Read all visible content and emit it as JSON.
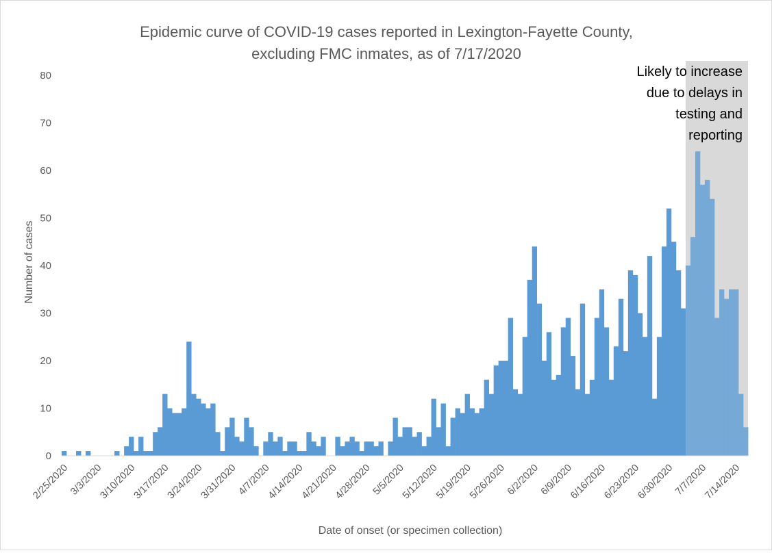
{
  "chart_data": {
    "type": "bar",
    "title": [
      "Epidemic curve of COVID-19 cases reported in Lexington-Fayette County,",
      "excluding FMC inmates, as of 7/17/2020"
    ],
    "xlabel": "Date of onset (or specimen collection)",
    "ylabel": "Number of cases",
    "ylim": [
      0,
      80
    ],
    "yticks": [
      0,
      10,
      20,
      30,
      40,
      50,
      60,
      70,
      80
    ],
    "x_start": "2/25/2020",
    "x_end": "7/17/2020",
    "tick_labels": [
      "2/25/2020",
      "3/3/2020",
      "3/10/2020",
      "3/17/2020",
      "3/24/2020",
      "3/31/2020",
      "4/7/2020",
      "4/14/2020",
      "4/21/2020",
      "4/28/2020",
      "5/5/2020",
      "5/12/2020",
      "5/19/2020",
      "5/26/2020",
      "6/2/2020",
      "6/9/2020",
      "6/16/2020",
      "6/23/2020",
      "6/30/2020",
      "7/7/2020",
      "7/14/2020"
    ],
    "values": [
      1,
      0,
      0,
      1,
      0,
      1,
      0,
      0,
      0,
      0,
      0,
      1,
      0,
      2,
      4,
      1,
      4,
      1,
      1,
      5,
      6,
      13,
      10,
      9,
      9,
      10,
      24,
      13,
      12,
      11,
      10,
      11,
      5,
      1,
      6,
      8,
      4,
      3,
      8,
      6,
      2,
      0,
      3,
      5,
      3,
      4,
      1,
      3,
      3,
      1,
      1,
      5,
      3,
      2,
      4,
      0,
      0,
      4,
      2,
      3,
      4,
      3,
      1,
      3,
      3,
      2,
      3,
      0,
      3,
      8,
      4,
      6,
      6,
      4,
      5,
      2,
      4,
      12,
      6,
      11,
      2,
      8,
      10,
      9,
      13,
      10,
      9,
      10,
      16,
      13,
      19,
      20,
      20,
      29,
      14,
      13,
      25,
      37,
      44,
      32,
      20,
      26,
      16,
      17,
      27,
      29,
      21,
      14,
      32,
      13,
      16,
      29,
      35,
      27,
      16,
      23,
      33,
      22,
      39,
      38,
      30,
      25,
      42,
      12,
      25,
      44,
      52,
      45,
      39,
      31,
      40,
      46,
      64,
      57,
      58,
      54,
      29,
      35,
      33,
      35,
      35,
      13,
      6
    ],
    "series_color": "#5B9BD5",
    "annotation": {
      "lines": [
        "Likely to increase",
        "due to delays in",
        "testing and",
        "reporting"
      ],
      "shade_from": "7/4/2020",
      "shade_color": "#D9D9D9"
    },
    "grid": false,
    "legend": "none"
  }
}
